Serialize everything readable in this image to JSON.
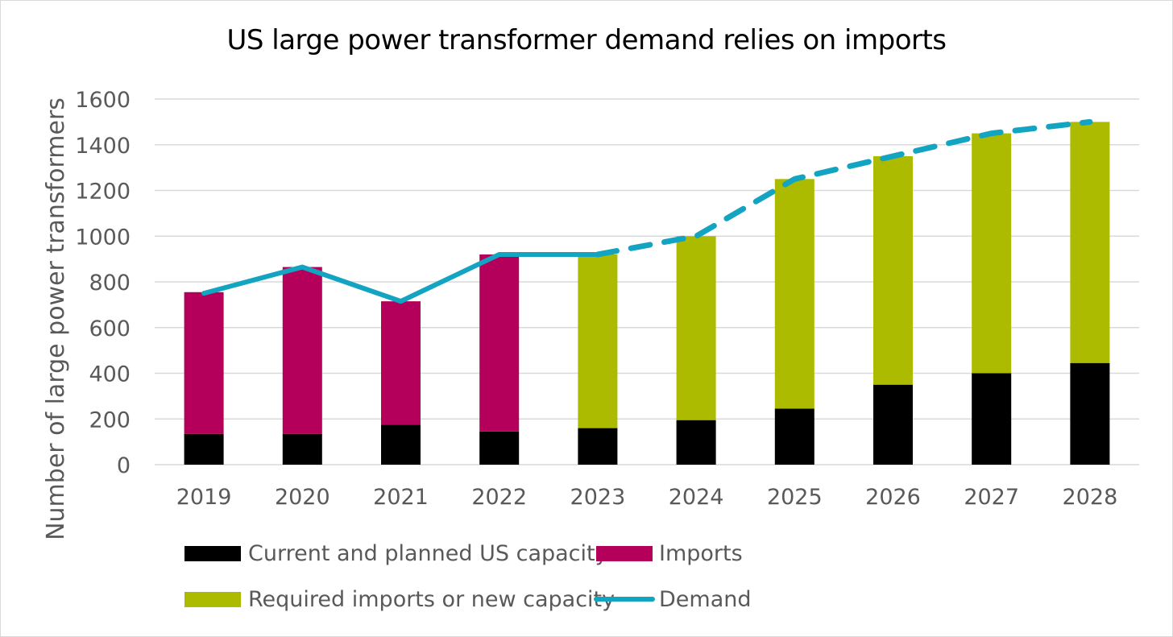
{
  "colors": {
    "us_capacity": "#000000",
    "imports": "#b5005b",
    "required": "#acbb00",
    "demand": "#12a4c0",
    "grid": "#d9d9d9",
    "text": "#595959"
  },
  "chart_data": {
    "type": "bar",
    "stacked": true,
    "title": "US large power transformer demand relies on imports",
    "xlabel": "",
    "ylabel": "Number of large power transformers",
    "ylim": [
      0,
      1600
    ],
    "yticks": [
      0,
      200,
      400,
      600,
      800,
      1000,
      1200,
      1400,
      1600
    ],
    "categories": [
      "2019",
      "2020",
      "2021",
      "2022",
      "2023",
      "2024",
      "2025",
      "2026",
      "2027",
      "2028"
    ],
    "series": [
      {
        "name": "Current and planned US capacity",
        "type": "bar",
        "values": [
          135,
          135,
          175,
          145,
          160,
          195,
          245,
          350,
          400,
          445
        ]
      },
      {
        "name": "Imports",
        "type": "bar",
        "values": [
          620,
          730,
          540,
          775,
          0,
          0,
          0,
          0,
          0,
          0
        ]
      },
      {
        "name": "Required imports or new capacity",
        "type": "bar",
        "values": [
          0,
          0,
          0,
          0,
          760,
          805,
          1005,
          1000,
          1050,
          1055
        ]
      },
      {
        "name": "Demand",
        "type": "line",
        "values": [
          750,
          865,
          715,
          920,
          920,
          1000,
          1250,
          1350,
          1450,
          1500
        ],
        "solid_through": "2023",
        "dashed_from": "2023"
      }
    ],
    "grid": true,
    "legend_position": "bottom"
  }
}
